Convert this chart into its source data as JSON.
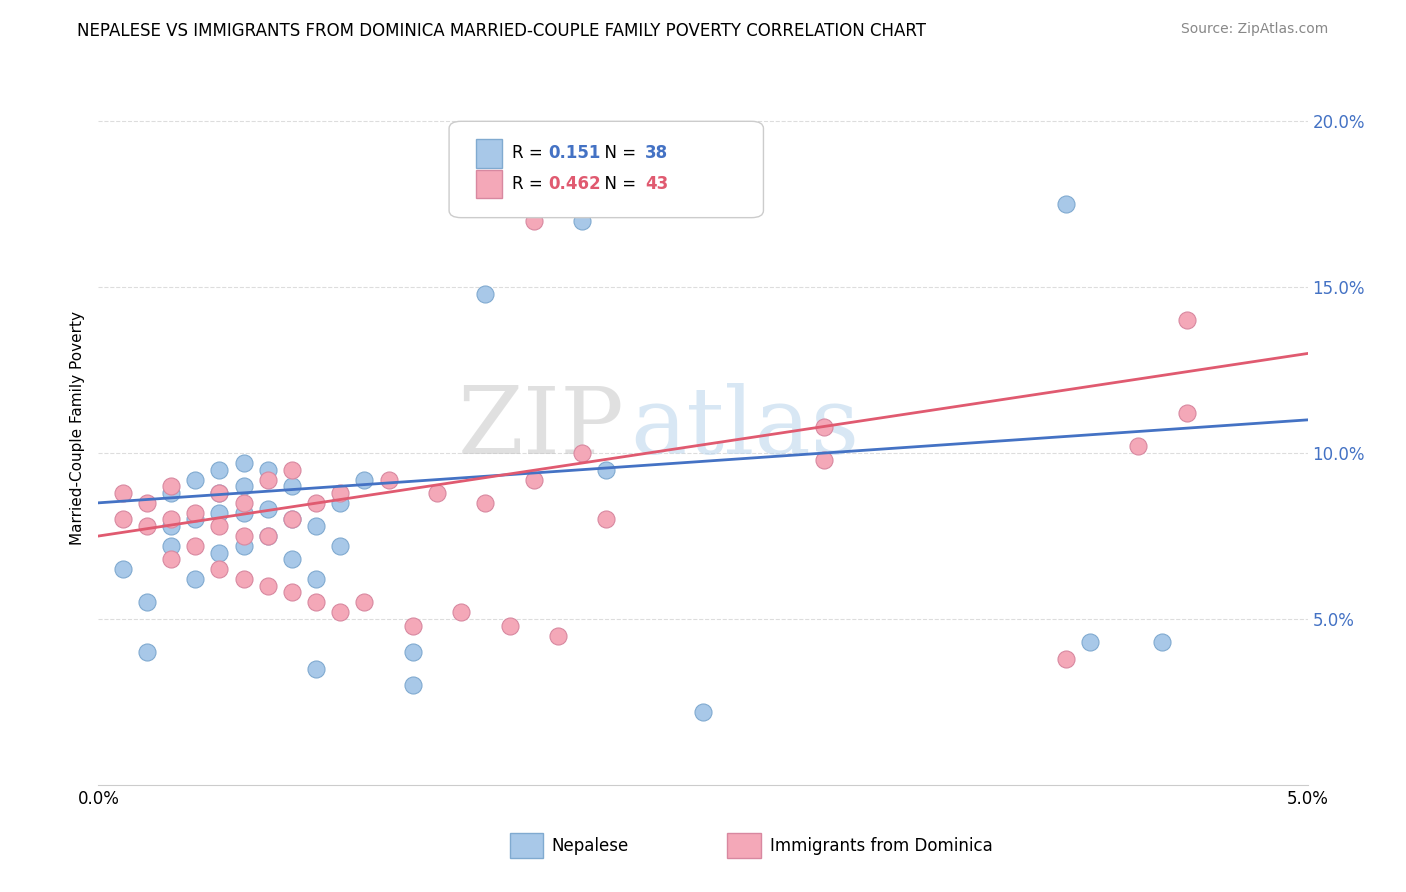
{
  "title": "NEPALESE VS IMMIGRANTS FROM DOMINICA MARRIED-COUPLE FAMILY POVERTY CORRELATION CHART",
  "source": "Source: ZipAtlas.com",
  "ylabel": "Married-Couple Family Poverty",
  "ytick_vals": [
    0.0,
    0.05,
    0.1,
    0.15,
    0.2
  ],
  "ytick_labels": [
    "",
    "5.0%",
    "10.0%",
    "15.0%",
    "20.0%"
  ],
  "xlim": [
    0.0,
    0.05
  ],
  "ylim": [
    0.0,
    0.215
  ],
  "watermark": "ZIPatlas",
  "legend1_r": "0.151",
  "legend1_n": "38",
  "legend2_r": "0.462",
  "legend2_n": "43",
  "nepalese_color": "#a8c8e8",
  "dominica_color": "#f4a8b8",
  "line_blue": "#4472c4",
  "line_pink": "#e05a70",
  "nepalese_x": [
    0.001,
    0.002,
    0.002,
    0.003,
    0.003,
    0.003,
    0.004,
    0.004,
    0.004,
    0.005,
    0.005,
    0.005,
    0.005,
    0.006,
    0.006,
    0.006,
    0.006,
    0.007,
    0.007,
    0.007,
    0.008,
    0.008,
    0.008,
    0.009,
    0.009,
    0.01,
    0.01,
    0.011,
    0.013,
    0.013,
    0.016,
    0.02,
    0.025,
    0.04,
    0.041,
    0.044,
    0.021,
    0.009
  ],
  "nepalese_y": [
    0.065,
    0.04,
    0.055,
    0.072,
    0.078,
    0.088,
    0.062,
    0.08,
    0.092,
    0.07,
    0.082,
    0.088,
    0.095,
    0.072,
    0.082,
    0.09,
    0.097,
    0.075,
    0.083,
    0.095,
    0.068,
    0.08,
    0.09,
    0.062,
    0.078,
    0.072,
    0.085,
    0.092,
    0.03,
    0.04,
    0.148,
    0.17,
    0.022,
    0.175,
    0.043,
    0.043,
    0.095,
    0.035
  ],
  "dominica_x": [
    0.001,
    0.001,
    0.002,
    0.002,
    0.003,
    0.003,
    0.003,
    0.004,
    0.004,
    0.005,
    0.005,
    0.005,
    0.006,
    0.006,
    0.006,
    0.007,
    0.007,
    0.007,
    0.008,
    0.008,
    0.008,
    0.009,
    0.009,
    0.01,
    0.01,
    0.011,
    0.012,
    0.013,
    0.014,
    0.015,
    0.016,
    0.017,
    0.018,
    0.019,
    0.02,
    0.021,
    0.03,
    0.03,
    0.04,
    0.043,
    0.045,
    0.045,
    0.018
  ],
  "dominica_y": [
    0.08,
    0.088,
    0.078,
    0.085,
    0.068,
    0.08,
    0.09,
    0.072,
    0.082,
    0.065,
    0.078,
    0.088,
    0.062,
    0.075,
    0.085,
    0.06,
    0.075,
    0.092,
    0.058,
    0.08,
    0.095,
    0.055,
    0.085,
    0.052,
    0.088,
    0.055,
    0.092,
    0.048,
    0.088,
    0.052,
    0.085,
    0.048,
    0.092,
    0.045,
    0.1,
    0.08,
    0.098,
    0.108,
    0.038,
    0.102,
    0.112,
    0.14,
    0.17
  ]
}
